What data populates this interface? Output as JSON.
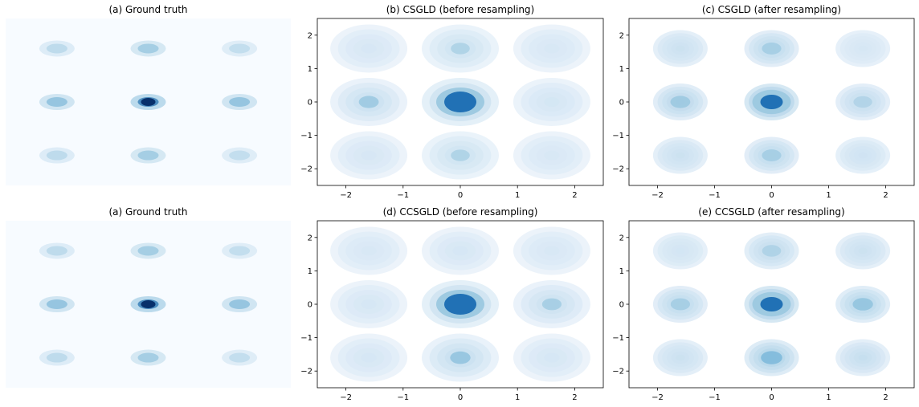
{
  "chart_data": [
    {
      "type": "heatmap",
      "title": "(a) Ground truth",
      "axes_visible": false,
      "modes": [
        {
          "x": -1.6,
          "y": 1.6,
          "w": 0.25
        },
        {
          "x": 0,
          "y": 1.6,
          "w": 0.45
        },
        {
          "x": 1.6,
          "y": 1.6,
          "w": 0.22
        },
        {
          "x": -1.6,
          "y": 0,
          "w": 0.55
        },
        {
          "x": 0,
          "y": 0,
          "w": 1.0
        },
        {
          "x": 1.6,
          "y": 0,
          "w": 0.55
        },
        {
          "x": -1.6,
          "y": -1.6,
          "w": 0.25
        },
        {
          "x": 0,
          "y": -1.6,
          "w": 0.45
        },
        {
          "x": 1.6,
          "y": -1.6,
          "w": 0.22
        }
      ]
    },
    {
      "type": "heatmap",
      "title": "(b) CSGLD (before resampling)",
      "xlim": [
        -2.5,
        2.5
      ],
      "ylim": [
        -2.5,
        2.5
      ],
      "xticks": [
        "−2",
        "−1",
        "0",
        "1",
        "2"
      ],
      "yticks": [
        "2",
        "1",
        "0",
        "−1",
        "−2"
      ],
      "modes": [
        {
          "x": -1.6,
          "y": 1.6,
          "w": 0.14
        },
        {
          "x": 0,
          "y": 1.6,
          "w": 0.3
        },
        {
          "x": 1.6,
          "y": 1.6,
          "w": 0.12
        },
        {
          "x": -1.6,
          "y": 0,
          "w": 0.4
        },
        {
          "x": 0,
          "y": 0,
          "w": 1.0
        },
        {
          "x": 1.6,
          "y": 0,
          "w": 0.18
        },
        {
          "x": -1.6,
          "y": -1.6,
          "w": 0.14
        },
        {
          "x": 0,
          "y": -1.6,
          "w": 0.3
        },
        {
          "x": 1.6,
          "y": -1.6,
          "w": 0.12
        }
      ]
    },
    {
      "type": "heatmap",
      "title": "(c) CSGLD (after resampling)",
      "xlim": [
        -2.5,
        2.5
      ],
      "ylim": [
        -2.5,
        2.5
      ],
      "xticks": [
        "−2",
        "−1",
        "0",
        "1",
        "2"
      ],
      "yticks": [
        "2",
        "1",
        "0",
        "−1",
        "−2"
      ],
      "modes": [
        {
          "x": -1.6,
          "y": 1.6,
          "w": 0.2
        },
        {
          "x": 0,
          "y": 1.6,
          "w": 0.35
        },
        {
          "x": 1.6,
          "y": 1.6,
          "w": 0.08
        },
        {
          "x": -1.6,
          "y": 0,
          "w": 0.4
        },
        {
          "x": 0,
          "y": 0,
          "w": 1.0
        },
        {
          "x": 1.6,
          "y": 0,
          "w": 0.28
        },
        {
          "x": -1.6,
          "y": -1.6,
          "w": 0.2
        },
        {
          "x": 0,
          "y": -1.6,
          "w": 0.35
        },
        {
          "x": 1.6,
          "y": -1.6,
          "w": 0.15
        }
      ]
    },
    {
      "type": "heatmap",
      "title": "(a) Ground truth",
      "axes_visible": false,
      "modes": [
        {
          "x": -1.6,
          "y": 1.6,
          "w": 0.25
        },
        {
          "x": 0,
          "y": 1.6,
          "w": 0.45
        },
        {
          "x": 1.6,
          "y": 1.6,
          "w": 0.22
        },
        {
          "x": -1.6,
          "y": 0,
          "w": 0.55
        },
        {
          "x": 0,
          "y": 0,
          "w": 1.0
        },
        {
          "x": 1.6,
          "y": 0,
          "w": 0.55
        },
        {
          "x": -1.6,
          "y": -1.6,
          "w": 0.25
        },
        {
          "x": 0,
          "y": -1.6,
          "w": 0.45
        },
        {
          "x": 1.6,
          "y": -1.6,
          "w": 0.22
        }
      ]
    },
    {
      "type": "heatmap",
      "title": "(d) CCSGLD (before resampling)",
      "xlim": [
        -2.5,
        2.5
      ],
      "ylim": [
        -2.5,
        2.5
      ],
      "xticks": [
        "−2",
        "−1",
        "0",
        "1",
        "2"
      ],
      "yticks": [
        "2",
        "1",
        "0",
        "−1",
        "−2"
      ],
      "modes": [
        {
          "x": -1.6,
          "y": 1.6,
          "w": 0.12
        },
        {
          "x": 0,
          "y": 1.6,
          "w": 0.15
        },
        {
          "x": 1.6,
          "y": 1.6,
          "w": 0.12
        },
        {
          "x": -1.6,
          "y": 0,
          "w": 0.15
        },
        {
          "x": 0,
          "y": 0,
          "w": 1.0
        },
        {
          "x": 1.6,
          "y": 0,
          "w": 0.35
        },
        {
          "x": -1.6,
          "y": -1.6,
          "w": 0.15
        },
        {
          "x": 0,
          "y": -1.6,
          "w": 0.45
        },
        {
          "x": 1.6,
          "y": -1.6,
          "w": 0.15
        }
      ]
    },
    {
      "type": "heatmap",
      "title": "(e) CCSGLD (after resampling)",
      "xlim": [
        -2.5,
        2.5
      ],
      "ylim": [
        -2.5,
        2.5
      ],
      "xticks": [
        "−2",
        "−1",
        "0",
        "1",
        "2"
      ],
      "yticks": [
        "2",
        "1",
        "0",
        "−1",
        "−2"
      ],
      "modes": [
        {
          "x": -1.6,
          "y": 1.6,
          "w": 0.12
        },
        {
          "x": 0,
          "y": 1.6,
          "w": 0.3
        },
        {
          "x": 1.6,
          "y": 1.6,
          "w": 0.2
        },
        {
          "x": -1.6,
          "y": 0,
          "w": 0.35
        },
        {
          "x": 0,
          "y": 0,
          "w": 1.0
        },
        {
          "x": 1.6,
          "y": 0,
          "w": 0.45
        },
        {
          "x": -1.6,
          "y": -1.6,
          "w": 0.2
        },
        {
          "x": 0,
          "y": -1.6,
          "w": 0.55
        },
        {
          "x": 1.6,
          "y": -1.6,
          "w": 0.25
        }
      ]
    }
  ],
  "colors": {
    "background_panel": "#f7fbff",
    "low": "#deebf7",
    "mid": "#6baed6",
    "high": "#08306b",
    "axis": "#000000"
  }
}
